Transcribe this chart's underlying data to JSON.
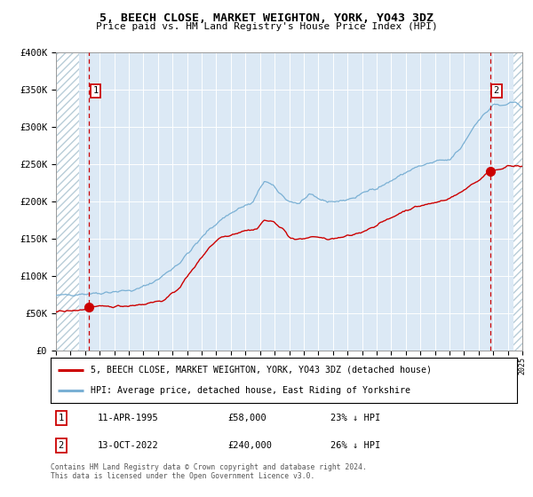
{
  "title1": "5, BEECH CLOSE, MARKET WEIGHTON, YORK, YO43 3DZ",
  "title2": "Price paid vs. HM Land Registry's House Price Index (HPI)",
  "legend1": "5, BEECH CLOSE, MARKET WEIGHTON, YORK, YO43 3DZ (detached house)",
  "legend2": "HPI: Average price, detached house, East Riding of Yorkshire",
  "annotation1_date": "11-APR-1995",
  "annotation1_price": "£58,000",
  "annotation1_hpi": "23% ↓ HPI",
  "annotation2_date": "13-OCT-2022",
  "annotation2_price": "£240,000",
  "annotation2_hpi": "26% ↓ HPI",
  "footnote1": "Contains HM Land Registry data © Crown copyright and database right 2024.",
  "footnote2": "This data is licensed under the Open Government Licence v3.0.",
  "red_color": "#cc0000",
  "blue_color": "#7ab0d4",
  "bg_color": "#dce9f5",
  "hatch_color": "#b8cdd8",
  "grid_color": "#ffffff",
  "ylim": [
    0,
    400000
  ],
  "yticks": [
    0,
    50000,
    100000,
    150000,
    200000,
    250000,
    300000,
    350000,
    400000
  ],
  "ytick_labels": [
    "£0",
    "£50K",
    "£100K",
    "£150K",
    "£200K",
    "£250K",
    "£300K",
    "£350K",
    "£400K"
  ],
  "sale1_x": 1995.28,
  "sale1_y": 58000,
  "sale2_x": 2022.78,
  "sale2_y": 240000,
  "xmin": 1993,
  "xmax": 2025,
  "hatch_left_end": 1994.6,
  "hatch_right_start": 2024.4
}
